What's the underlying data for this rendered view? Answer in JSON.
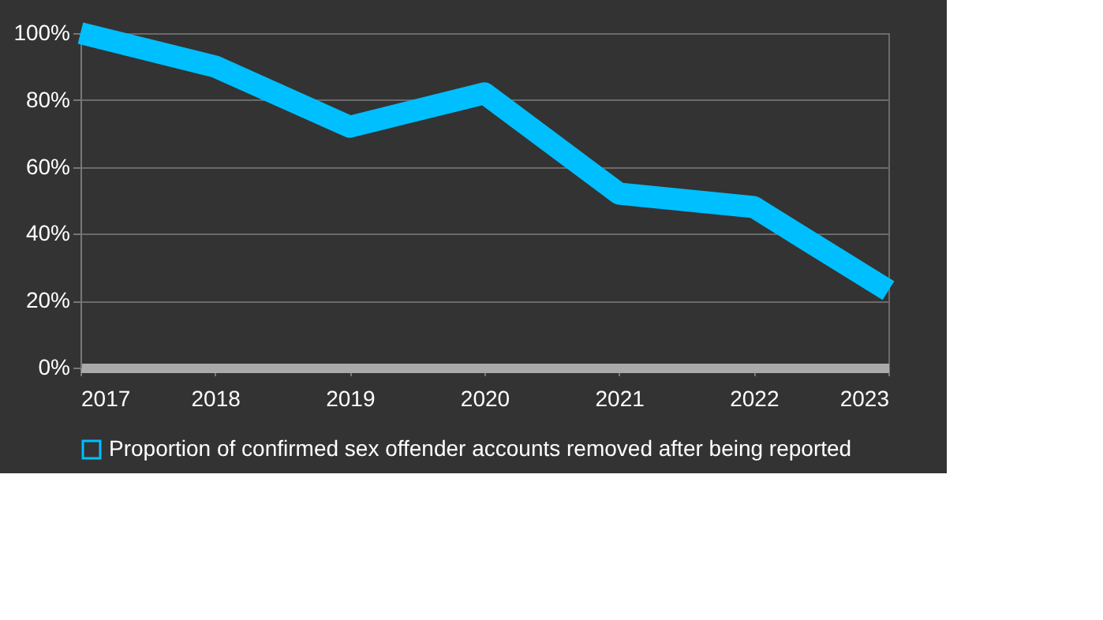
{
  "chart_data": {
    "type": "line",
    "categories": [
      "2017",
      "2018",
      "2019",
      "2020",
      "2021",
      "2022",
      "2023"
    ],
    "series": [
      {
        "name": "Proportion of confirmed sex offender accounts removed after being reported",
        "color": "#00bfff",
        "values": [
          100,
          90,
          72,
          82,
          52,
          48,
          23
        ]
      }
    ],
    "ylim": [
      0,
      100
    ],
    "yticks": [
      {
        "value": 0,
        "label": "0%"
      },
      {
        "value": 20,
        "label": "20%"
      },
      {
        "value": 40,
        "label": "40%"
      },
      {
        "value": 60,
        "label": "60%"
      },
      {
        "value": 80,
        "label": "80%"
      },
      {
        "value": 100,
        "label": "100%"
      }
    ],
    "grid": "y",
    "legend": "bottom",
    "marker": "none",
    "line_style": "solid"
  }
}
